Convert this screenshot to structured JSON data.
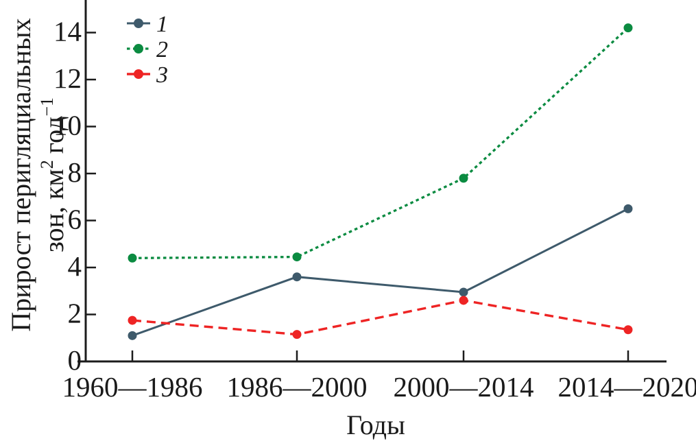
{
  "chart_data": {
    "type": "line",
    "title": "",
    "xlabel": "Годы",
    "ylabel": "Прирост перигляциальных зон, км2 год−1",
    "ylabel_line1": "Прирост перигляциальных",
    "ylabel_line2_pre": "зон, км",
    "ylabel_line2_sup1": "2",
    "ylabel_line2_mid": "год",
    "ylabel_line2_sup2": "−1",
    "categories": [
      "1960—1986",
      "1986—2000",
      "2000—2014",
      "2014—2020"
    ],
    "yticks": [
      0,
      2,
      4,
      6,
      8,
      10,
      12,
      14
    ],
    "ylim": [
      0,
      15.4
    ],
    "grid": false,
    "legend_position": "top-left",
    "axis_color": "#1c1c1c",
    "series": [
      {
        "name": "1",
        "style": "solid",
        "color": "#3e5a6b",
        "values": [
          1.1,
          3.6,
          2.95,
          6.5
        ]
      },
      {
        "name": "2",
        "style": "dotted",
        "color": "#0b8b41",
        "values": [
          4.4,
          4.45,
          7.8,
          14.2
        ]
      },
      {
        "name": "3",
        "style": "dashed",
        "color": "#ee2424",
        "values": [
          1.75,
          1.15,
          2.6,
          1.35
        ]
      }
    ]
  }
}
